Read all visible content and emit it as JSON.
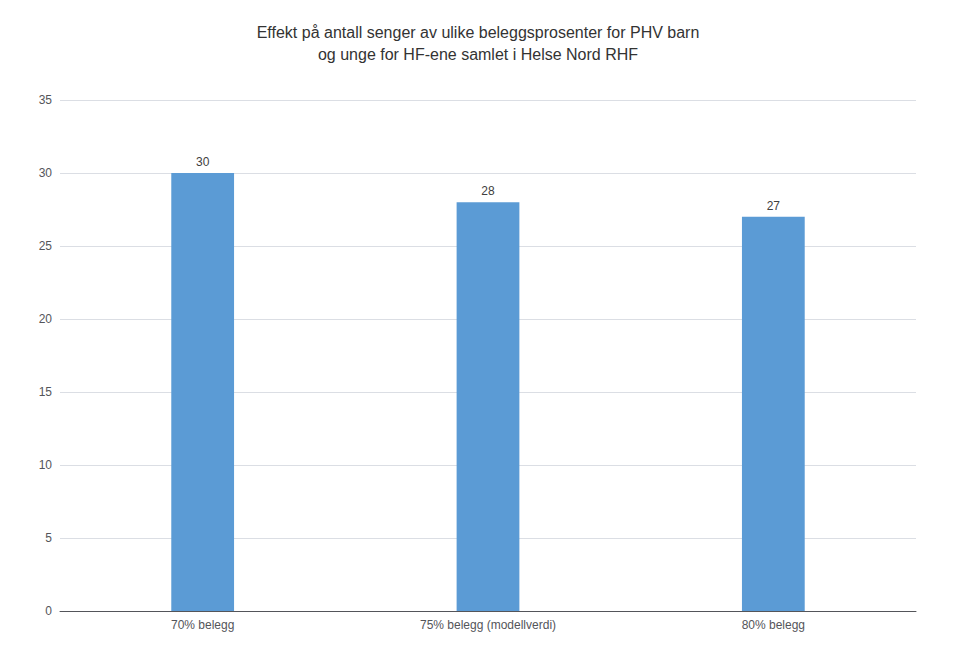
{
  "chart_data": {
    "type": "bar",
    "title": "Effekt på antall senger av ulike beleggsprosenter for PHV barn\nog unge for HF-ene samlet i Helse Nord RHF",
    "categories": [
      "70% belegg",
      "75% belegg (modellverdi)",
      "80% belegg"
    ],
    "values": [
      30,
      28,
      27
    ],
    "color": "#5B9BD5",
    "ylim": [
      0,
      35
    ],
    "yticks": [
      0,
      5,
      10,
      15,
      20,
      25,
      30,
      35
    ],
    "grid": true,
    "data_labels": true
  }
}
